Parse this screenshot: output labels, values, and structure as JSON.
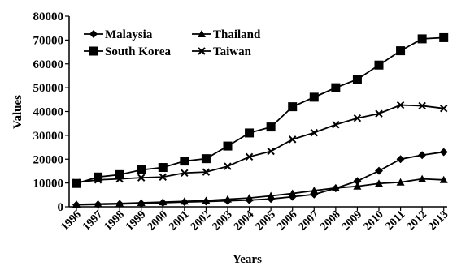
{
  "chart_data": {
    "type": "line",
    "title": "",
    "xlabel": "Years",
    "ylabel": "Values",
    "x": [
      "1996",
      "1997",
      "1998",
      "1999",
      "2000",
      "2001",
      "2002",
      "2003",
      "2004",
      "2005",
      "2006",
      "2007",
      "2008",
      "2009",
      "2010",
      "2011",
      "2012",
      "2013"
    ],
    "ylim": [
      0,
      80000
    ],
    "yticks": [
      0,
      10000,
      20000,
      30000,
      40000,
      50000,
      60000,
      70000,
      80000
    ],
    "ytick_labels": [
      "0",
      "10000",
      "20000",
      "30000",
      "40000",
      "50000",
      "60000",
      "70000",
      "80000"
    ],
    "grid": false,
    "legend_position": "top-left",
    "series": [
      {
        "name": "Malaysia",
        "marker": "diamond",
        "values": [
          800,
          1000,
          1200,
          1400,
          1700,
          2000,
          2200,
          2500,
          2800,
          3300,
          4200,
          5200,
          7800,
          10800,
          15100,
          20000,
          21700,
          23000
        ]
      },
      {
        "name": "Thailand",
        "marker": "triangle",
        "values": [
          1000,
          1200,
          1400,
          1700,
          2000,
          2300,
          2600,
          3200,
          3700,
          4600,
          5600,
          6800,
          7900,
          8600,
          9800,
          10300,
          11700,
          11300
        ]
      },
      {
        "name": "South Korea",
        "marker": "square",
        "values": [
          9800,
          12500,
          13500,
          15500,
          16500,
          19200,
          20200,
          25500,
          31000,
          33500,
          42000,
          46000,
          50000,
          53500,
          59500,
          65500,
          70500,
          71000
        ]
      },
      {
        "name": "Taiwan",
        "marker": "cross",
        "values": [
          10200,
          11300,
          11700,
          12200,
          12500,
          14200,
          14600,
          17000,
          21000,
          23300,
          28300,
          31100,
          34500,
          37200,
          39100,
          42700,
          42400,
          41300
        ]
      }
    ]
  },
  "colors": {
    "ink": "#000000",
    "background": "#ffffff"
  }
}
